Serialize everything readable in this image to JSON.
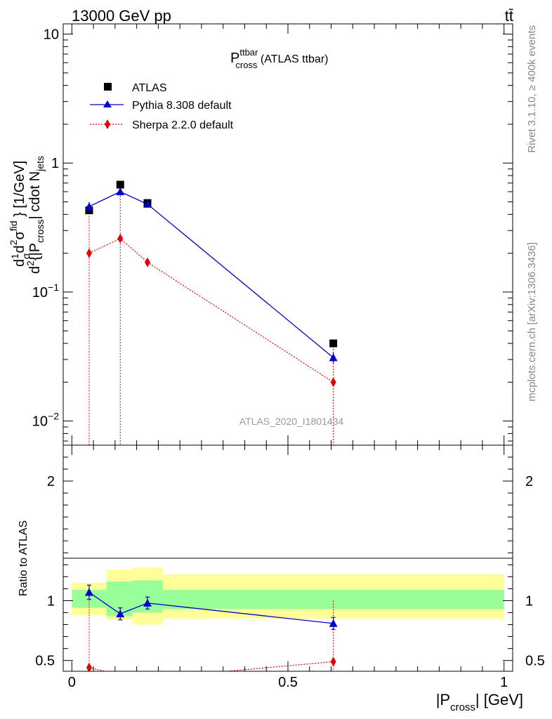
{
  "header": {
    "process": "13000 GeV pp",
    "final_state": "tt̄"
  },
  "side_text": {
    "rivet": "Rivet 3.1.10, ≥ 400k events",
    "source": "mcplots.cern.ch [arXiv:1306.3436]"
  },
  "watermark": "ATLAS_2020_I1801434",
  "chart_data": [
    {
      "type": "line",
      "title_main": "P",
      "title_sup": "ttbar",
      "title_sub": "cross",
      "title_rest": " (ATLAS ttbar)",
      "ylabel_upper": "d²σ^fid / d² {|P_cross| cdot N_jets} [1/GeV]",
      "ylabel": {
        "prefix": "d",
        "one": "1",
        "sigma": "σ",
        "d": "d",
        "sq": "2",
        "sigma_fid_sup": "fid",
        "tail": "} [1/GeV]",
        "lower": "{|P",
        "cross": "cross",
        "mid": "| cdot N",
        "jets": "jets"
      },
      "yscale": "log",
      "ylim": [
        0.0065,
        12
      ],
      "xlim": [
        -0.02,
        1.02
      ],
      "yticks": [
        {
          "value": 10,
          "base": "10",
          "exp": ""
        },
        {
          "value": 1,
          "base": "1",
          "exp": ""
        },
        {
          "value": 0.1,
          "base": "10",
          "exp": "−1"
        },
        {
          "value": 0.01,
          "base": "10",
          "exp": "−2"
        }
      ],
      "legend": [
        {
          "label": "ATLAS",
          "color": "#000000",
          "marker": "square"
        },
        {
          "label": "Pythia 8.308 default",
          "color": "#0000cc",
          "marker": "triangle"
        },
        {
          "label": "Sherpa 2.2.0 default",
          "color": "#e60000",
          "marker": "diamond"
        }
      ],
      "series": [
        {
          "name": "ATLAS",
          "x": [
            0.04,
            0.112,
            0.175,
            0.605
          ],
          "y": [
            0.43,
            0.68,
            0.49,
            0.04
          ]
        },
        {
          "name": "Pythia 8.308 default",
          "x": [
            0.04,
            0.112,
            0.175,
            0.605
          ],
          "y": [
            0.46,
            0.6,
            0.48,
            0.031
          ],
          "yerr": [
            0.04,
            0.04,
            0.025,
            0.003
          ]
        },
        {
          "name": "Sherpa 2.2.0 default",
          "x": [
            0.04,
            0.112,
            0.175,
            0.605
          ],
          "y": [
            0.2,
            0.26,
            0.17,
            0.02
          ]
        }
      ]
    },
    {
      "type": "line",
      "ylabel": "Ratio to ATLAS",
      "xlabel_pre": "|P",
      "xlabel_sub": "cross",
      "xlabel_post": "| [GeV]",
      "ylim": [
        0.41,
        2.3
      ],
      "xlim": [
        -0.02,
        1.02
      ],
      "xticks": [
        "0",
        "0.5",
        "1"
      ],
      "yticks": [
        "0.5",
        "1",
        "2"
      ],
      "bands": {
        "edges": [
          0,
          0.08,
          0.14,
          0.21,
          1.0
        ],
        "inner": [
          [
            0.94,
            1.09
          ],
          [
            0.87,
            1.16
          ],
          [
            0.9,
            1.17
          ],
          [
            0.93,
            1.09
          ]
        ],
        "outer": [
          [
            0.88,
            1.15
          ],
          [
            0.84,
            1.26
          ],
          [
            0.8,
            1.28
          ],
          [
            0.85,
            1.22
          ]
        ],
        "inner_color": "#99ff99",
        "outer_color": "#ffff99"
      },
      "series": [
        {
          "name": "Pythia 8.308 default",
          "x": [
            0.04,
            0.112,
            0.175,
            0.605
          ],
          "y": [
            1.07,
            0.89,
            0.98,
            0.81
          ],
          "yerr": [
            0.06,
            0.05,
            0.05,
            0.05
          ]
        },
        {
          "name": "Sherpa 2.2.0 default",
          "x": [
            0.04,
            0.112,
            0.175,
            0.605
          ],
          "y": [
            0.44,
            0.38,
            0.35,
            0.49
          ]
        }
      ]
    }
  ]
}
